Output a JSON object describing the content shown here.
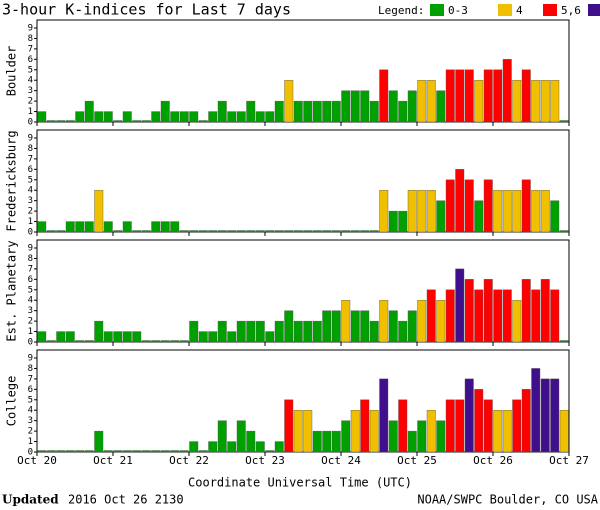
{
  "chart_data": {
    "type": "bar",
    "title": "3-hour K-indices for Last 7 days",
    "legend_title": "Legend:",
    "legend": [
      {
        "label": "0-3",
        "color": "#00a000",
        "min": 0
      },
      {
        "label": "4",
        "color": "#f0c000",
        "min": 4
      },
      {
        "label": "5,6",
        "color": "#ff0000",
        "min": 5
      },
      {
        "label": "7-9",
        "color": "#40108c",
        "min": 7
      }
    ],
    "xlabel": "Coordinate Universal Time (UTC)",
    "xtick_labels": [
      "Oct 20",
      "Oct 21",
      "Oct 22",
      "Oct 23",
      "Oct 24",
      "Oct 25",
      "Oct 26",
      "Oct 27"
    ],
    "ylim": [
      0,
      9
    ],
    "yticks": [
      0,
      1,
      2,
      3,
      4,
      5,
      6,
      7,
      8,
      9
    ],
    "updated_label": "Updated",
    "updated": "2016 Oct 26 2130",
    "credit": "NOAA/SWPC Boulder, CO USA",
    "series": [
      {
        "name": "Boulder",
        "values": [
          1,
          0,
          0,
          0,
          1,
          2,
          1,
          1,
          0,
          1,
          0,
          0,
          1,
          2,
          1,
          1,
          1,
          0,
          1,
          2,
          1,
          1,
          2,
          1,
          1,
          2,
          4,
          2,
          2,
          2,
          2,
          2,
          3,
          3,
          3,
          2,
          5,
          3,
          2,
          3,
          4,
          4,
          3,
          5,
          5,
          5,
          4,
          5,
          5,
          6,
          4,
          5,
          4,
          4,
          4,
          0
        ]
      },
      {
        "name": "Fredericksburg",
        "values": [
          1,
          0,
          0,
          1,
          1,
          1,
          4,
          1,
          0,
          1,
          0,
          0,
          1,
          1,
          1,
          0,
          0,
          0,
          0,
          0,
          0,
          0,
          0,
          0,
          0,
          0,
          0,
          0,
          0,
          0,
          0,
          0,
          0,
          0,
          0,
          0,
          4,
          2,
          2,
          4,
          4,
          4,
          3,
          5,
          6,
          5,
          3,
          5,
          4,
          4,
          4,
          5,
          4,
          4,
          3,
          0
        ]
      },
      {
        "name": "Est. Planetary",
        "values": [
          1,
          0,
          1,
          1,
          0,
          0,
          2,
          1,
          1,
          1,
          1,
          0,
          0,
          0,
          0,
          0,
          2,
          1,
          1,
          2,
          1,
          2,
          2,
          2,
          1,
          2,
          3,
          2,
          2,
          2,
          3,
          3,
          4,
          3,
          3,
          2,
          4,
          3,
          2,
          3,
          4,
          5,
          4,
          5,
          7,
          6,
          5,
          6,
          5,
          5,
          4,
          6,
          5,
          6,
          5,
          0
        ]
      },
      {
        "name": "College",
        "values": [
          0,
          0,
          0,
          0,
          0,
          0,
          2,
          0,
          0,
          0,
          0,
          0,
          0,
          0,
          0,
          0,
          1,
          0,
          1,
          3,
          1,
          3,
          2,
          1,
          0,
          1,
          5,
          4,
          4,
          2,
          2,
          2,
          3,
          4,
          5,
          4,
          7,
          3,
          5,
          2,
          3,
          4,
          3,
          5,
          5,
          7,
          6,
          5,
          4,
          4,
          5,
          6,
          8,
          7,
          7,
          4
        ]
      }
    ]
  }
}
